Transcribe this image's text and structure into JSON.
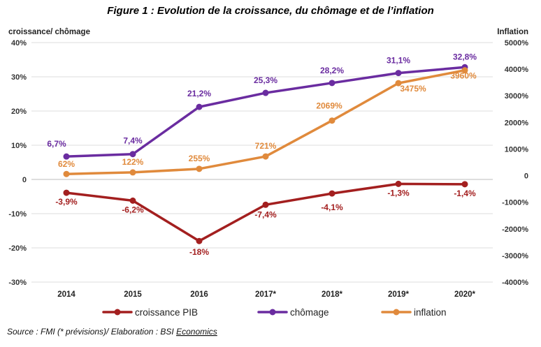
{
  "chart_data": {
    "type": "line",
    "title": "Figure 1 : Evolution de la croissance, du chômage et de l’inflation",
    "ylabel_left": "croissance/ chômage",
    "ylabel_right": "Inflation",
    "categories": [
      "2014",
      "2015",
      "2016",
      "2017*",
      "2018*",
      "2019*",
      "2020*"
    ],
    "y_left": {
      "min": -30,
      "max": 40,
      "step": 10,
      "tick_labels": [
        "-30%",
        "-20%",
        "-10%",
        "0",
        "10%",
        "20%",
        "30%",
        "40%"
      ]
    },
    "y_right": {
      "min": -4000,
      "max": 5000,
      "step": 1000,
      "tick_labels": [
        "-4000%",
        "-3000%",
        "-2000%",
        "-1000%",
        "0",
        "1000%",
        "2000%",
        "3000%",
        "4000%",
        "5000%"
      ]
    },
    "grid": true,
    "legend_position": "bottom",
    "series": [
      {
        "name": "croissance PIB",
        "axis": "left",
        "color": "#a31f1f",
        "values": [
          -3.9,
          -6.2,
          -18,
          -7.4,
          -4.1,
          -1.3,
          -1.4
        ],
        "labels": [
          "-3,9%",
          "-6,2%",
          "-18%",
          "-7,4%",
          "-4,1%",
          "-1,3%",
          "-1,4%"
        ]
      },
      {
        "name": "chômage",
        "axis": "left",
        "color": "#6a2ca0",
        "values": [
          6.7,
          7.4,
          21.2,
          25.3,
          28.2,
          31.1,
          32.8
        ],
        "labels": [
          "6,7%",
          "7,4%",
          "21,2%",
          "25,3%",
          "28,2%",
          "31,1%",
          "32,8%"
        ]
      },
      {
        "name": "inflation",
        "axis": "right",
        "color": "#e08a3c",
        "values": [
          62,
          122,
          255,
          721,
          2069,
          3475,
          3960
        ],
        "labels": [
          "62%",
          "122%",
          "255%",
          "721%",
          "2069%",
          "3475%",
          "3960%"
        ]
      }
    ]
  },
  "footer": {
    "source_prefix": "Source : FMI (* prévisions)/ Elaboration : BSI ",
    "source_link": "Economics"
  }
}
